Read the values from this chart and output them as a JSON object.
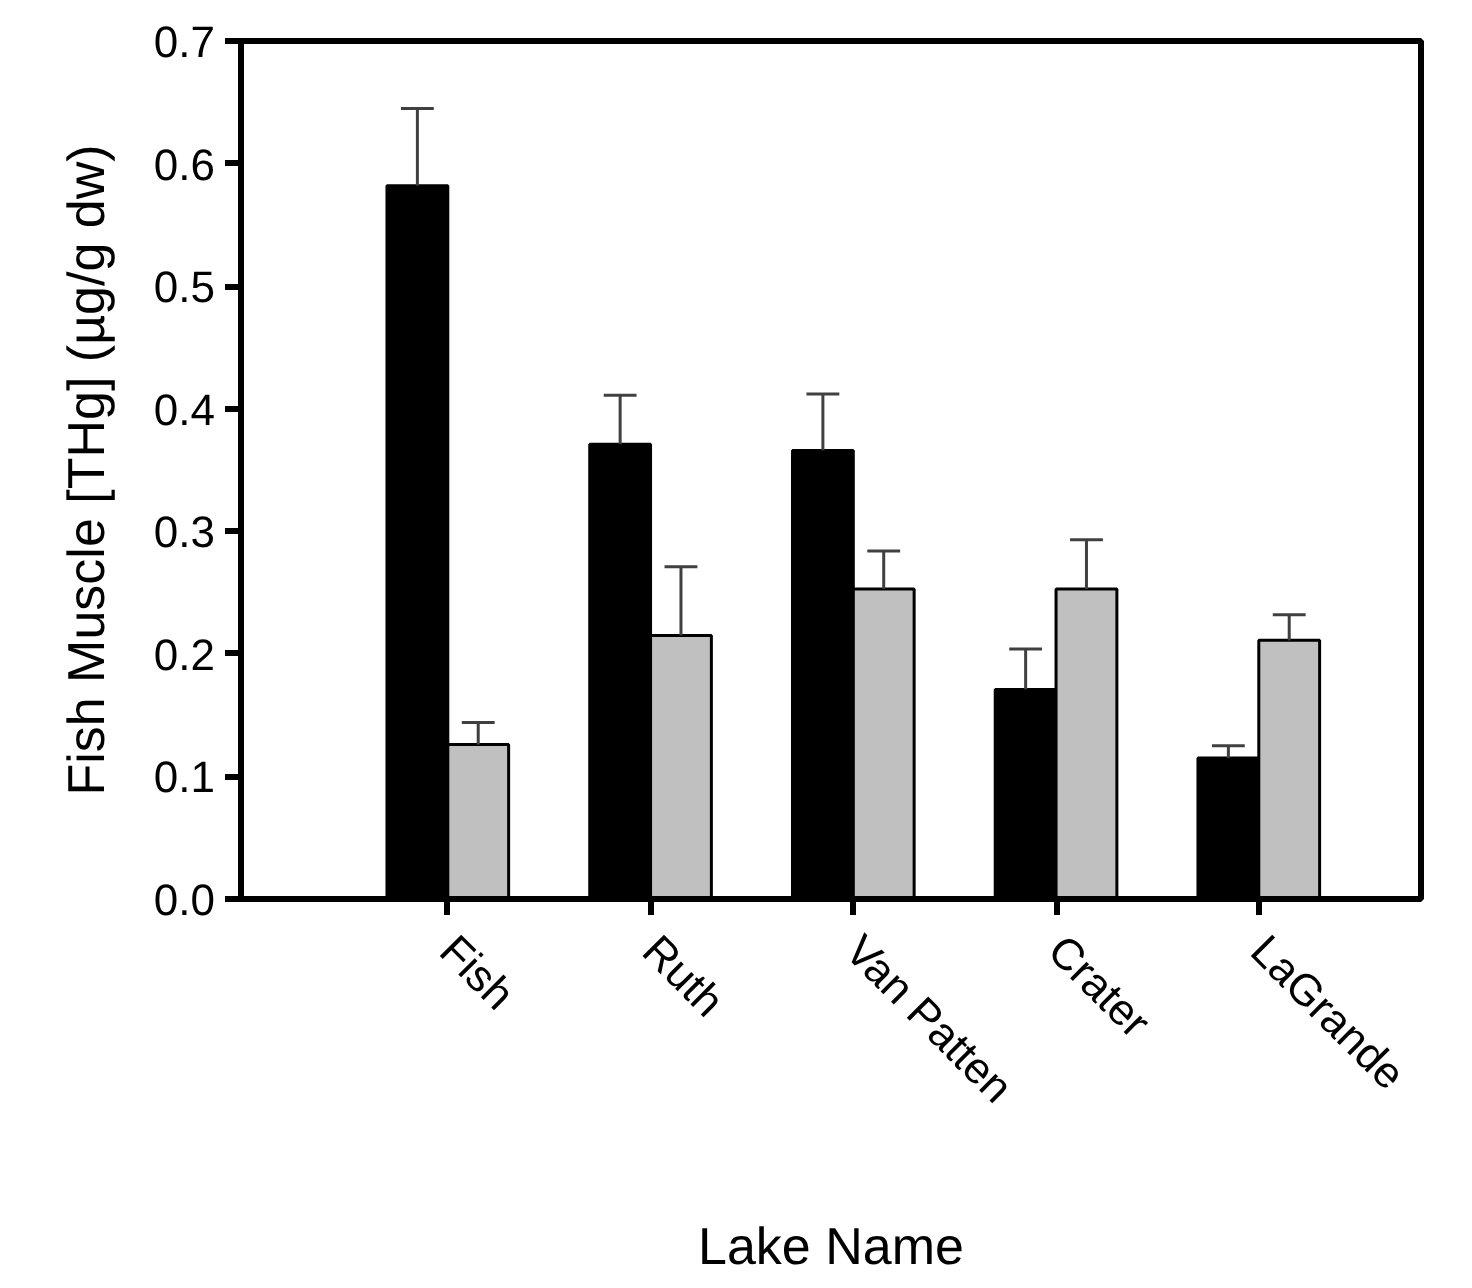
{
  "chart_data": {
    "type": "bar",
    "xlabel": "Lake Name",
    "ylabel": "Fish Muscle [THg] (µg/g dw)",
    "categories": [
      "Fish",
      "Ruth",
      "Van Patten",
      "Crater",
      "LaGrande"
    ],
    "series": [
      {
        "color": "#000000",
        "values": [
          0.582,
          0.371,
          0.366,
          0.171,
          0.115
        ],
        "errors": [
          [
            0.582,
            0.645
          ],
          [
            0.371,
            0.411
          ],
          [
            0.366,
            0.412
          ],
          [
            0.171,
            0.204
          ],
          [
            0.115,
            0.125
          ]
        ]
      },
      {
        "color": "#c0c0c0",
        "values": [
          0.126,
          0.215,
          0.253,
          0.253,
          0.211
        ],
        "errors": [
          [
            0.126,
            0.144
          ],
          [
            0.215,
            0.271
          ],
          [
            0.253,
            0.284
          ],
          [
            0.253,
            0.293
          ],
          [
            0.211,
            0.232
          ]
        ]
      }
    ],
    "ylim": [
      0,
      0.7
    ],
    "yticks": [
      "0.0",
      0.1,
      0.2,
      0.3,
      0.4,
      0.5,
      0.6,
      0.7
    ],
    "grid": false
  }
}
